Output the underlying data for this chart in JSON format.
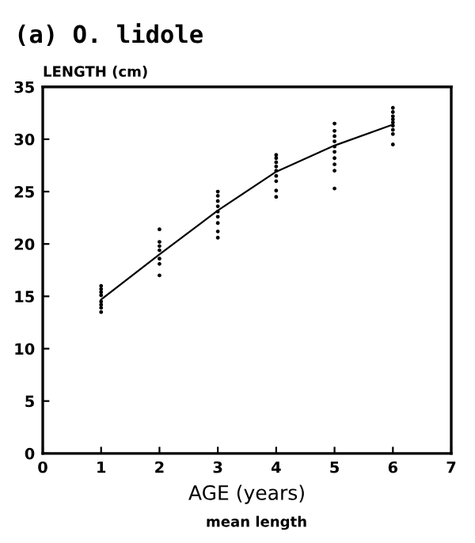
{
  "chart_data": {
    "type": "scatter",
    "title": "(a) O. lidole",
    "xlabel": "AGE (years)",
    "ylabel": "LENGTH (cm)",
    "series": [
      {
        "color": "#000000",
        "marker": "circle",
        "x": [
          1,
          1,
          1,
          1,
          1,
          1,
          1,
          1,
          2,
          2,
          2,
          2,
          2,
          2,
          2,
          3,
          3,
          3,
          3,
          3,
          3,
          3,
          3,
          3,
          4,
          4,
          4,
          4,
          4,
          4,
          4,
          4,
          4,
          5,
          5,
          5,
          5,
          5,
          5,
          5,
          5,
          5,
          5,
          6,
          6,
          6,
          6,
          6,
          6,
          6,
          6,
          6
        ],
        "values": [
          13.5,
          13.9,
          14.2,
          14.5,
          15.1,
          15.4,
          15.7,
          16.0,
          17.0,
          18.1,
          18.6,
          19.4,
          19.8,
          20.2,
          21.4,
          20.6,
          21.2,
          22.0,
          22.6,
          23.1,
          23.6,
          24.1,
          24.6,
          25.0,
          24.5,
          25.1,
          26.0,
          26.5,
          27.0,
          27.4,
          27.8,
          28.2,
          28.5,
          25.3,
          27.0,
          27.6,
          28.2,
          28.8,
          29.3,
          29.8,
          30.3,
          30.8,
          31.5,
          29.5,
          30.5,
          30.9,
          31.3,
          31.6,
          31.9,
          32.2,
          32.6,
          33.0
        ]
      },
      {
        "type": "line",
        "color": "#000000",
        "x": [
          1,
          2,
          3,
          4,
          5,
          6
        ],
        "values": [
          14.7,
          19.0,
          23.2,
          26.9,
          29.4,
          31.4
        ]
      }
    ],
    "xlim": [
      0,
      7
    ],
    "ylim": [
      0,
      35
    ],
    "xticks": [
      0,
      1,
      2,
      3,
      4,
      5,
      6,
      7
    ],
    "yticks": [
      0,
      5,
      10,
      15,
      20,
      25,
      30,
      35
    ],
    "grid": false,
    "legend": false,
    "annotations": [
      "mean length"
    ]
  }
}
